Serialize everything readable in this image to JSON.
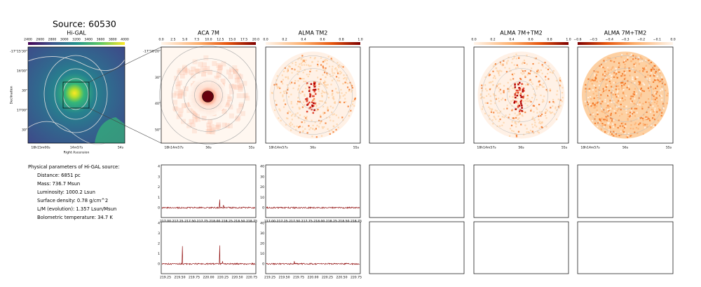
{
  "title": "Source: 60530",
  "image_panels": [
    {
      "title": "Hi-GAL",
      "colorbar_ticks": [
        "2400",
        "2600",
        "2800",
        "3000",
        "3200",
        "3400",
        "3600",
        "3800",
        "4000"
      ],
      "x_ticks": [
        "18h15m00s",
        "14m57s",
        "54s"
      ],
      "y_ticks": [
        "-17°15'30\"",
        "16'00\"",
        "30\"",
        "17'00\"",
        "30\""
      ],
      "x_label": "Right Ascension",
      "y_label": "Declination"
    },
    {
      "title": "ACA 7M",
      "colorbar_ticks": [
        "0.0",
        "2.5",
        "5.0",
        "7.5",
        "10.0",
        "12.5",
        "15.0",
        "17.5",
        "20.0"
      ],
      "x_ticks": [
        "18h14m57s",
        "56s",
        "55s"
      ],
      "y_ticks": [
        "-17°16'20\"",
        "30\"",
        "40\"",
        "50\""
      ]
    },
    {
      "title": "ALMA TM2",
      "colorbar_ticks": [
        "0.0",
        "0.2",
        "0.4",
        "0.6",
        "0.8",
        "1.0"
      ],
      "x_ticks": [
        "18h14m57s",
        "56s",
        "55s"
      ]
    },
    {
      "title": "ALMA 7M+TM2",
      "colorbar_ticks": [
        "0.0",
        "0.2",
        "0.4",
        "0.6",
        "0.8",
        "1.0"
      ],
      "x_ticks": [
        "18h14m57s",
        "56s",
        "55s"
      ]
    },
    {
      "title": "ALMA 7M+TM2",
      "colorbar_ticks": [
        "−0.6",
        "−0.5",
        "−0.4",
        "−0.3",
        "−0.2",
        "−0.1",
        "0.0"
      ],
      "x_ticks": [
        "18h14m57s",
        "56s",
        "55s"
      ]
    }
  ],
  "parameters": {
    "heading": "Physical parameters of Hi-GAL source:",
    "lines": [
      "Distance: 6851 pc",
      "Mass: 736.7 Msun",
      "Luminosity: 1000.2 Lsun",
      "Surface density: 0.78 g/cm^2",
      "L/M (evolution): 1.357 Lsun/Msun",
      "Bolometric temperature: 34.7 K"
    ]
  },
  "spectra": [
    {
      "y_ticks": [
        "0",
        "1",
        "2",
        "3",
        "4"
      ],
      "x_ticks": [
        "217.00",
        "217.25",
        "217.50",
        "217.75",
        "218.00",
        "218.25",
        "218.50",
        "218.75"
      ]
    },
    {
      "y_ticks": [
        "0",
        "10",
        "20",
        "30",
        "40"
      ],
      "x_ticks": [
        "217.00",
        "217.25",
        "217.50",
        "217.75",
        "218.00",
        "218.25",
        "218.50",
        "218.75"
      ]
    },
    {
      "y_ticks": [
        "0",
        "1",
        "2",
        "3",
        "4"
      ],
      "x_ticks": [
        "219.25",
        "219.50",
        "219.75",
        "220.00",
        "220.25",
        "220.50",
        "220.75"
      ]
    },
    {
      "y_ticks": [
        "0",
        "10",
        "20",
        "30",
        "40"
      ],
      "x_ticks": [
        "219.25",
        "219.50",
        "219.75",
        "220.00",
        "220.25",
        "220.50",
        "220.75"
      ]
    }
  ]
}
